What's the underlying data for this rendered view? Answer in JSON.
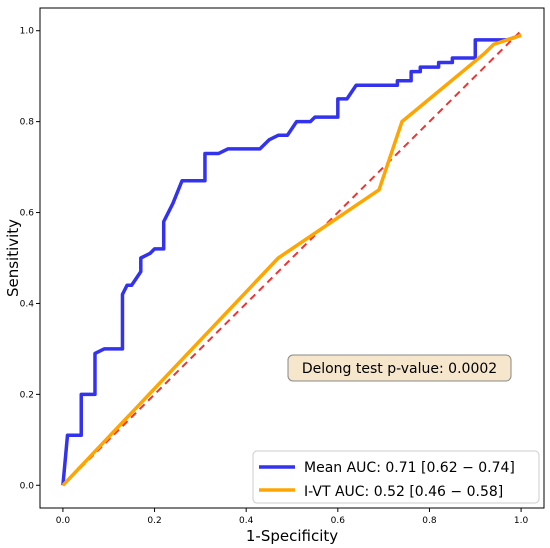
{
  "chart_data": {
    "type": "line",
    "xlabel": "1-Specificity",
    "ylabel": "Sensitivity",
    "xlim": [
      -0.05,
      1.05
    ],
    "ylim": [
      -0.05,
      1.05
    ],
    "xticks": [
      "0.0",
      "0.2",
      "0.4",
      "0.6",
      "0.8",
      "1.0"
    ],
    "yticks": [
      "0.0",
      "0.2",
      "0.4",
      "0.6",
      "0.8",
      "1.0"
    ],
    "grid": false,
    "legend_position": "bottom-right",
    "series": [
      {
        "name": "Mean AUC: 0.71 [0.62 − 0.74]",
        "color": "#3333ee",
        "x": [
          0,
          0.01,
          0.01,
          0.04,
          0.04,
          0.07,
          0.07,
          0.09,
          0.09,
          0.1,
          0.1,
          0.13,
          0.13,
          0.14,
          0.14,
          0.15,
          0.15,
          0.17,
          0.17,
          0.19,
          0.19,
          0.2,
          0.2,
          0.22,
          0.22,
          0.23,
          0.23,
          0.24,
          0.24,
          0.26,
          0.26,
          0.27,
          0.27,
          0.28,
          0.28,
          0.31,
          0.31,
          0.34,
          0.34,
          0.36,
          0.36,
          0.43,
          0.43,
          0.44,
          0.44,
          0.45,
          0.45,
          0.47,
          0.47,
          0.49,
          0.49,
          0.51,
          0.51,
          0.54,
          0.54,
          0.55,
          0.55,
          0.59,
          0.59,
          0.6,
          0.6,
          0.62,
          0.62,
          0.64,
          0.64,
          0.67,
          0.67,
          0.73,
          0.73,
          0.74,
          0.74,
          0.76,
          0.76,
          0.78,
          0.78,
          0.8,
          0.8,
          0.82,
          0.82,
          0.85,
          0.85,
          0.87,
          0.87,
          0.9,
          0.9,
          0.97,
          1.0
        ],
        "y": [
          0,
          0.11,
          0.11,
          0.11,
          0.2,
          0.2,
          0.29,
          0.3,
          0.3,
          0.3,
          0.3,
          0.3,
          0.42,
          0.44,
          0.44,
          0.44,
          0.44,
          0.47,
          0.5,
          0.51,
          0.51,
          0.52,
          0.52,
          0.52,
          0.58,
          0.6,
          0.6,
          0.62,
          0.62,
          0.67,
          0.67,
          0.67,
          0.67,
          0.67,
          0.67,
          0.67,
          0.73,
          0.73,
          0.73,
          0.74,
          0.74,
          0.74,
          0.74,
          0.75,
          0.75,
          0.76,
          0.76,
          0.77,
          0.77,
          0.77,
          0.77,
          0.8,
          0.8,
          0.8,
          0.8,
          0.81,
          0.81,
          0.81,
          0.81,
          0.81,
          0.85,
          0.85,
          0.85,
          0.88,
          0.88,
          0.88,
          0.88,
          0.88,
          0.89,
          0.89,
          0.89,
          0.89,
          0.91,
          0.91,
          0.92,
          0.92,
          0.92,
          0.92,
          0.93,
          0.93,
          0.94,
          0.94,
          0.94,
          0.94,
          0.98,
          0.98,
          0.99
        ]
      },
      {
        "name": "I-VT AUC: 0.52 [0.46 − 0.58]",
        "color": "#ffa500",
        "x": [
          0,
          0.47,
          0.69,
          0.74,
          0.92,
          0.94,
          1.0
        ],
        "y": [
          0,
          0.5,
          0.65,
          0.8,
          0.95,
          0.97,
          0.99
        ]
      }
    ],
    "reference_line": {
      "x": [
        0,
        1
      ],
      "y": [
        0,
        1
      ],
      "color": "#ee3333",
      "style": "dashed"
    },
    "annotation": "Delong test p-value: 0.0002"
  }
}
